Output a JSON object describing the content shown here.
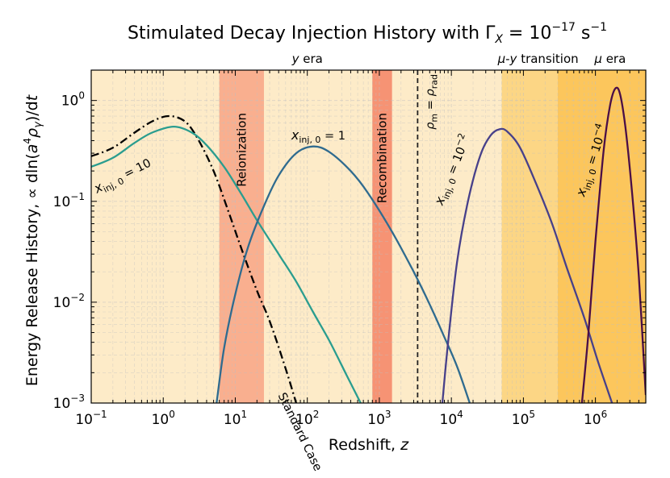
{
  "chart_data": {
    "type": "line",
    "title_main": "Stimulated Decay Injection History with ",
    "title_math": "Γ",
    "title_sub": "X",
    "title_eq": " = 10",
    "title_exp": "−17",
    "title_unit": " s",
    "title_unit_exp": "−1",
    "xlabel_main": "Redshift, ",
    "xlabel_var": "z",
    "ylabel_main": "Energy Release History, ∝ dln(",
    "ylabel_a": "a",
    "ylabel_a_exp": "4",
    "ylabel_rho": "ρ",
    "ylabel_gamma": "γ",
    "ylabel_end": ")/d",
    "ylabel_t": "t",
    "x_scale": "log",
    "y_scale": "log",
    "xlim": [
      0.1,
      5000000
    ],
    "ylim": [
      0.001,
      2
    ],
    "grid": true,
    "x_ticks": [
      {
        "value": 0.1,
        "base": "10",
        "exp": "−1"
      },
      {
        "value": 1,
        "base": "10",
        "exp": "0"
      },
      {
        "value": 10,
        "base": "10",
        "exp": "1"
      },
      {
        "value": 100,
        "base": "10",
        "exp": "2"
      },
      {
        "value": 1000,
        "base": "10",
        "exp": "3"
      },
      {
        "value": 10000,
        "base": "10",
        "exp": "4"
      },
      {
        "value": 100000,
        "base": "10",
        "exp": "5"
      },
      {
        "value": 1000000,
        "base": "10",
        "exp": "6"
      }
    ],
    "y_ticks": [
      {
        "value": 0.001,
        "base": "10",
        "exp": "−3"
      },
      {
        "value": 0.01,
        "base": "10",
        "exp": "−2"
      },
      {
        "value": 0.1,
        "base": "10",
        "exp": "−1"
      },
      {
        "value": 1,
        "base": "10",
        "exp": "0"
      }
    ],
    "eras": [
      {
        "name": "y era",
        "z_start": 0.1,
        "z_end": 50000,
        "color": "#fdebc8"
      },
      {
        "name": "μ-y transition",
        "z_start": 50000,
        "z_end": 300000,
        "color": "#fcd98a"
      },
      {
        "name": "μ era",
        "z_start": 300000,
        "z_end": 5000000,
        "color": "#fcc65c"
      }
    ],
    "era_labels": [
      {
        "italic": "y",
        "rest": " era",
        "z": 100
      },
      {
        "italic": "μ",
        "mid": "-",
        "italic2": "y",
        "rest": " transition",
        "z": 160000
      },
      {
        "italic": "μ",
        "rest": " era",
        "z": 1600000
      }
    ],
    "bands": [
      {
        "label": "Reionization",
        "z_start": 6,
        "z_end": 25,
        "color": "#f8a888"
      },
      {
        "label": "Recombination",
        "z_start": 800,
        "z_end": 1500,
        "color": "#f58a6a"
      }
    ],
    "equality_line": {
      "z": 3400,
      "label_rho": "ρ",
      "label_sub_m": "m",
      "label_eq": " = ",
      "label_sub_rad": "rad"
    },
    "series": [
      {
        "name": "Standard Case",
        "color": "#000000",
        "dash": "dashdot",
        "points": [
          [
            0.1,
            0.28
          ],
          [
            0.2,
            0.34
          ],
          [
            0.4,
            0.48
          ],
          [
            0.7,
            0.62
          ],
          [
            1.2,
            0.7
          ],
          [
            2,
            0.62
          ],
          [
            3,
            0.42
          ],
          [
            5,
            0.2
          ],
          [
            8,
            0.08
          ],
          [
            12,
            0.035
          ],
          [
            20,
            0.013
          ],
          [
            30,
            0.0065
          ],
          [
            50,
            0.0022
          ],
          [
            70,
            0.001
          ]
        ]
      },
      {
        "name": "x_inj,0 = 10",
        "color": "#2a9d8f",
        "dash": "solid",
        "points": [
          [
            0.1,
            0.22
          ],
          [
            0.2,
            0.27
          ],
          [
            0.4,
            0.38
          ],
          [
            0.7,
            0.48
          ],
          [
            1.4,
            0.55
          ],
          [
            2.5,
            0.48
          ],
          [
            4,
            0.36
          ],
          [
            7,
            0.22
          ],
          [
            12,
            0.12
          ],
          [
            20,
            0.065
          ],
          [
            40,
            0.03
          ],
          [
            70,
            0.016
          ],
          [
            120,
            0.008
          ],
          [
            200,
            0.0042
          ],
          [
            350,
            0.0019
          ],
          [
            550,
            0.001
          ]
        ]
      },
      {
        "name": "x_inj,0 = 1",
        "color": "#2f6b8f",
        "dash": "solid",
        "points": [
          [
            5.5,
            0.001
          ],
          [
            7,
            0.0035
          ],
          [
            10,
            0.012
          ],
          [
            15,
            0.035
          ],
          [
            25,
            0.09
          ],
          [
            40,
            0.18
          ],
          [
            70,
            0.3
          ],
          [
            120,
            0.35
          ],
          [
            200,
            0.31
          ],
          [
            400,
            0.2
          ],
          [
            700,
            0.12
          ],
          [
            1500,
            0.05
          ],
          [
            3000,
            0.02
          ],
          [
            5000,
            0.0095
          ],
          [
            8000,
            0.0045
          ],
          [
            12000,
            0.0023
          ],
          [
            18000,
            0.001
          ]
        ]
      },
      {
        "name": "x_inj,0 = 10^-2",
        "color": "#47408a",
        "dash": "solid",
        "points": [
          [
            7500,
            0.001
          ],
          [
            9000,
            0.004
          ],
          [
            12000,
            0.025
          ],
          [
            17000,
            0.1
          ],
          [
            25000,
            0.28
          ],
          [
            35000,
            0.45
          ],
          [
            47000,
            0.52
          ],
          [
            60000,
            0.49
          ],
          [
            90000,
            0.34
          ],
          [
            150000,
            0.15
          ],
          [
            250000,
            0.06
          ],
          [
            400000,
            0.022
          ],
          [
            700000,
            0.007
          ],
          [
            1100000,
            0.0025
          ],
          [
            1700000,
            0.001
          ]
        ]
      },
      {
        "name": "x_inj,0 = 10^-4",
        "color": "#4a0f47",
        "dash": "solid",
        "points": [
          [
            650000,
            0.001
          ],
          [
            800000,
            0.005
          ],
          [
            1000000,
            0.04
          ],
          [
            1300000,
            0.32
          ],
          [
            1600000,
            0.9
          ],
          [
            1900000,
            1.32
          ],
          [
            2200000,
            1.15
          ],
          [
            2600000,
            0.55
          ],
          [
            3200000,
            0.13
          ],
          [
            4000000,
            0.018
          ],
          [
            5000000,
            0.0012
          ]
        ]
      }
    ],
    "annotations": [
      {
        "text_var": "x",
        "text_sub": "inj, 0",
        "text_eq": " = 10",
        "text_exp": "",
        "z": 0.12,
        "y": 0.12,
        "angle": -27
      },
      {
        "text_var": "x",
        "text_sub": "inj, 0",
        "text_eq": " = 1",
        "text_exp": "",
        "z": 60,
        "y": 0.41,
        "angle": 0
      },
      {
        "text_var": "x",
        "text_sub": "inj, 0",
        "text_eq": " = 10",
        "text_exp": "−2",
        "z": 7500,
        "y": 0.09,
        "angle": -68
      },
      {
        "text_var": "x",
        "text_sub": "inj, 0",
        "text_eq": " = 10",
        "text_exp": "−4",
        "z": 700000,
        "y": 0.11,
        "angle": -72
      },
      {
        "text_var": "",
        "text_sub": "",
        "text_eq": "Standard Case",
        "text_exp": "",
        "z": 39,
        "y": 0.0012,
        "angle": 64
      }
    ]
  }
}
